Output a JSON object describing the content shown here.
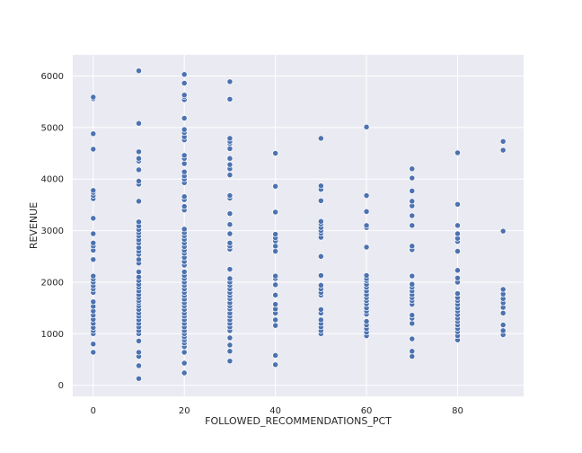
{
  "chart_data": {
    "type": "scatter",
    "title": "",
    "xlabel": "FOLLOWED_RECOMMENDATIONS_PCT",
    "ylabel": "REVENUE",
    "xlim": [
      -4.5,
      94.5
    ],
    "ylim": [
      -215,
      6410
    ],
    "xticks": [
      0,
      20,
      40,
      60,
      80
    ],
    "yticks": [
      0,
      1000,
      2000,
      3000,
      4000,
      5000,
      6000
    ],
    "grid": true,
    "legend": "none",
    "colors": {
      "background": "#eaeaf2",
      "point": "#4c72b0",
      "grid": "#ffffff"
    },
    "series": [
      {
        "groups": [
          {
            "x": 0,
            "y": [
              640,
              800,
              1000,
              1060,
              1120,
              1200,
              1280,
              1360,
              1440,
              1530,
              1620,
              1800,
              1870,
              1930,
              2000,
              2060,
              2120,
              2440,
              2620,
              2700,
              2760,
              2940,
              3240,
              3620,
              3680,
              3740,
              3780,
              4580,
              4880,
              5560,
              5590
            ]
          },
          {
            "x": 10,
            "y": [
              130,
              380,
              560,
              640,
              860,
              1000,
              1060,
              1130,
              1200,
              1270,
              1340,
              1400,
              1470,
              1540,
              1600,
              1640,
              1700,
              1760,
              1830,
              1900,
              1960,
              2030,
              2100,
              2200,
              2370,
              2440,
              2540,
              2600,
              2670,
              2760,
              2820,
              2900,
              2960,
              3020,
              3090,
              3170,
              3570,
              3900,
              3960,
              4180,
              4350,
              4400,
              4530,
              5080,
              6100
            ]
          },
          {
            "x": 20,
            "y": [
              240,
              430,
              640,
              750,
              820,
              880,
              940,
              1000,
              1060,
              1130,
              1200,
              1270,
              1340,
              1400,
              1470,
              1540,
              1600,
              1670,
              1740,
              1800,
              1870,
              1940,
              2000,
              2070,
              2130,
              2200,
              2330,
              2400,
              2480,
              2560,
              2620,
              2690,
              2760,
              2830,
              2900,
              2960,
              3030,
              3400,
              3470,
              3600,
              3660,
              3930,
              4000,
              4060,
              4140,
              4300,
              4400,
              4460,
              4760,
              4820,
              4900,
              4960,
              5180,
              5540,
              5600,
              5630,
              5860,
              6030
            ]
          },
          {
            "x": 30,
            "y": [
              470,
              660,
              780,
              920,
              1060,
              1130,
              1200,
              1270,
              1340,
              1400,
              1480,
              1540,
              1600,
              1680,
              1740,
              1800,
              1870,
              1940,
              2000,
              2070,
              2250,
              2640,
              2700,
              2760,
              2940,
              3120,
              3330,
              3630,
              3680,
              4080,
              4200,
              4280,
              4400,
              4590,
              4690,
              4730,
              4790,
              5550,
              5890
            ]
          },
          {
            "x": 40,
            "y": [
              400,
              580,
              1160,
              1270,
              1400,
              1480,
              1570,
              1750,
              1950,
              2070,
              2120,
              2600,
              2700,
              2800,
              2860,
              2930,
              3360,
              3860,
              4500
            ]
          },
          {
            "x": 50,
            "y": [
              1000,
              1060,
              1130,
              1200,
              1270,
              1400,
              1470,
              1750,
              1800,
              1870,
              1940,
              2130,
              2500,
              2870,
              2950,
              3000,
              3060,
              3130,
              3180,
              3580,
              3800,
              3870,
              4790
            ]
          },
          {
            "x": 60,
            "y": [
              960,
              1030,
              1100,
              1170,
              1240,
              1380,
              1440,
              1500,
              1580,
              1640,
              1700,
              1760,
              1830,
              1900,
              1960,
              2030,
              2070,
              2130,
              2680,
              3060,
              3100,
              3370,
              3680,
              5010
            ]
          },
          {
            "x": 70,
            "y": [
              560,
              660,
              900,
              1200,
              1300,
              1360,
              1570,
              1640,
              1700,
              1760,
              1830,
              1900,
              1960,
              2120,
              2630,
              2700,
              3100,
              3290,
              3480,
              3570,
              3770,
              4020,
              4200
            ]
          },
          {
            "x": 80,
            "y": [
              880,
              960,
              1040,
              1100,
              1170,
              1240,
              1300,
              1370,
              1440,
              1500,
              1570,
              1640,
              1700,
              1780,
              2000,
              2080,
              2230,
              2600,
              2790,
              2850,
              2940,
              3100,
              3510,
              4510
            ]
          },
          {
            "x": 90,
            "y": [
              980,
              1060,
              1170,
              1400,
              1510,
              1600,
              1680,
              1770,
              1860,
              2990,
              4560,
              4730
            ]
          }
        ]
      }
    ]
  }
}
